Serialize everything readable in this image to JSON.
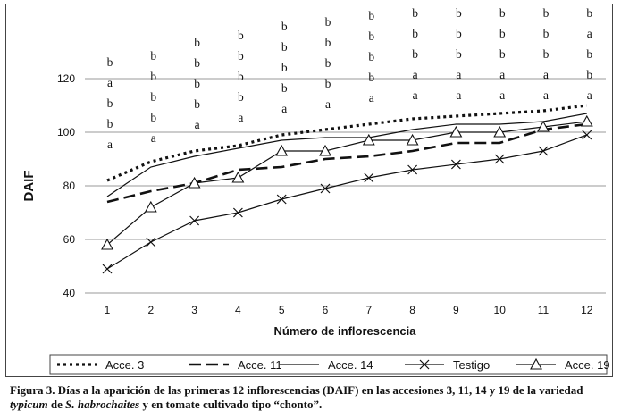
{
  "chart_data": {
    "type": "line",
    "ylabel": "DAIF",
    "xlabel": "Número de inflorescencia",
    "x": [
      "1",
      "2",
      "3",
      "4",
      "5",
      "6",
      "7",
      "8",
      "9",
      "10",
      "11",
      "12"
    ],
    "ylim": [
      40,
      120
    ],
    "yticks": [
      40,
      60,
      80,
      100,
      120
    ],
    "grid": "horizontal",
    "legend_position": "bottom",
    "series": [
      {
        "name": "Acce. 3",
        "style": "dotted",
        "values": [
          82,
          89,
          93,
          95,
          99,
          101,
          103,
          105,
          106,
          107,
          108,
          110
        ]
      },
      {
        "name": "Acce. 11",
        "style": "dashed",
        "values": [
          74,
          78,
          81,
          86,
          87,
          90,
          91,
          93,
          96,
          96,
          101,
          103
        ]
      },
      {
        "name": "Acce. 14",
        "style": "solid",
        "values": [
          76,
          87,
          91,
          94,
          97,
          98,
          98,
          101,
          103,
          103,
          104,
          107
        ]
      },
      {
        "name": "Testigo",
        "style": "solid-x",
        "values": [
          49,
          59,
          67,
          70,
          75,
          79,
          83,
          86,
          88,
          90,
          93,
          99
        ]
      },
      {
        "name": "Acce. 19",
        "style": "solid-triangle",
        "values": [
          58,
          72,
          81,
          83,
          93,
          93,
          97,
          97,
          100,
          100,
          102,
          104
        ]
      }
    ],
    "annotations": [
      [
        "b",
        "a",
        "b",
        "b",
        "a"
      ],
      [
        "b",
        "b",
        "b",
        "b",
        "a"
      ],
      [
        "b",
        "b",
        "b",
        "b",
        "a"
      ],
      [
        "b",
        "b",
        "b",
        "b",
        "a"
      ],
      [
        "b",
        "b",
        "b",
        "b",
        "a"
      ],
      [
        "b",
        "b",
        "b",
        "b",
        "a"
      ],
      [
        "b",
        "b",
        "b",
        "b",
        "a"
      ],
      [
        "b",
        "b",
        "b",
        "a",
        "a"
      ],
      [
        "b",
        "b",
        "b",
        "a",
        "a"
      ],
      [
        "b",
        "b",
        "b",
        "a",
        "a"
      ],
      [
        "b",
        "b",
        "b",
        "a",
        "a"
      ],
      [
        "b",
        "a",
        "b",
        "b",
        "a"
      ]
    ]
  },
  "caption": {
    "part1": "Figura 3. Días a la aparición de las primeras 12 inflorescencias (DAIF) en las accesiones  3,  11, 14 y 19 de la variedad ",
    "italic1": "typicum",
    "part2": " de ",
    "italic2": "S. habrochaites",
    "part3": " y en tomate cultivado tipo “chonto”."
  }
}
